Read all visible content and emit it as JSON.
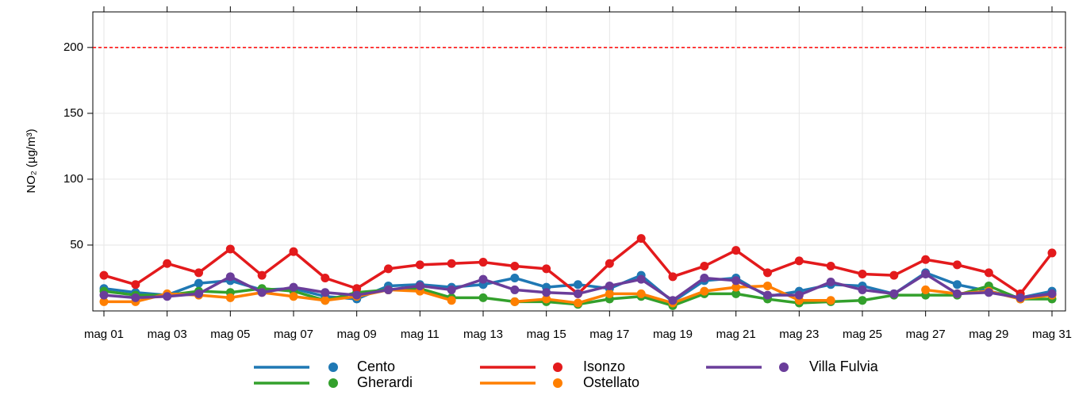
{
  "chart_data": {
    "type": "line",
    "y_label": "NO₂ (µg/m³)",
    "categories": [
      "mag 01",
      null,
      "mag 03",
      null,
      "mag 05",
      null,
      "mag 07",
      null,
      "mag 09",
      null,
      "mag 11",
      null,
      "mag 13",
      null,
      "mag 15",
      null,
      "mag 17",
      null,
      "mag 19",
      null,
      "mag 21",
      null,
      "mag 23",
      null,
      "mag 25",
      null,
      "mag 27",
      null,
      "mag 29",
      null,
      "mag 31"
    ],
    "series": [
      {
        "name": "Cento",
        "color": "#1f78b4",
        "values": [
          17,
          14,
          12,
          21,
          23,
          16,
          17,
          11,
          9,
          19,
          20,
          18,
          20,
          25,
          18,
          20,
          17,
          27,
          7,
          23,
          25,
          11,
          15,
          20,
          19,
          13,
          29,
          20,
          15,
          10,
          15
        ]
      },
      {
        "name": "Gherardi",
        "color": "#33a02c",
        "values": [
          15,
          12,
          12,
          15,
          14,
          17,
          15,
          8,
          14,
          16,
          17,
          10,
          10,
          7,
          7,
          5,
          9,
          11,
          4,
          13,
          13,
          9,
          6,
          7,
          8,
          12,
          12,
          12,
          19,
          9,
          9
        ]
      },
      {
        "name": "Isonzo",
        "color": "#e31a1c",
        "values": [
          27,
          20,
          36,
          29,
          47,
          27,
          45,
          25,
          17,
          32,
          35,
          36,
          37,
          34,
          32,
          13,
          36,
          55,
          26,
          34,
          46,
          29,
          38,
          34,
          28,
          27,
          39,
          35,
          29,
          13,
          44
        ]
      },
      {
        "name": "Ostellato",
        "color": "#ff7f00",
        "values": [
          7,
          7,
          13,
          12,
          10,
          14,
          11,
          8,
          11,
          16,
          15,
          8,
          null,
          7,
          9,
          6,
          13,
          13,
          6,
          15,
          18,
          19,
          8,
          8,
          null,
          null,
          16,
          13,
          15,
          9,
          12
        ]
      },
      {
        "name": "Villa Fulvia",
        "color": "#6a3d9a",
        "values": [
          12,
          10,
          11,
          13,
          26,
          14,
          18,
          14,
          12,
          16,
          19,
          16,
          24,
          16,
          14,
          13,
          19,
          24,
          8,
          25,
          23,
          12,
          12,
          22,
          16,
          13,
          28,
          13,
          14,
          10,
          13
        ]
      }
    ],
    "ylim": [
      0,
      227
    ],
    "yticks": [
      50,
      100,
      150,
      200
    ],
    "grid": true,
    "threshold": 200,
    "threshold_color": "#ff0000"
  }
}
